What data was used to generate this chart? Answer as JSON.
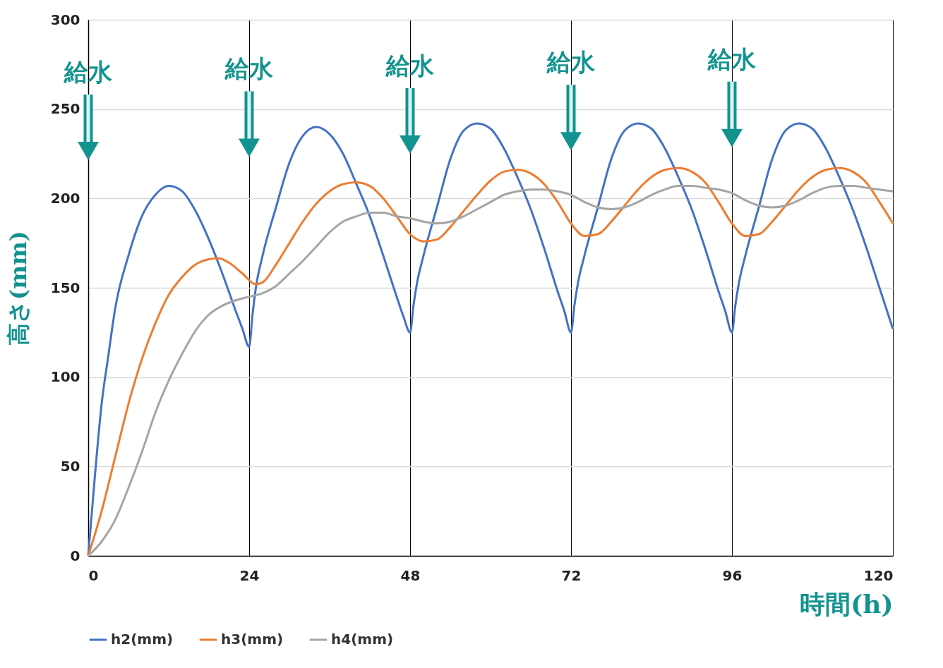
{
  "chart_data": {
    "type": "line",
    "xlabel": "時間(h)",
    "ylabel": "高さ(mm)",
    "xlim": [
      0,
      120
    ],
    "xticks": [
      0,
      24,
      48,
      72,
      96,
      120
    ],
    "ylim": [
      0,
      300
    ],
    "yticks": [
      0,
      50,
      100,
      150,
      200,
      250,
      300
    ],
    "grid": true,
    "legend": "bottom",
    "marker": "none",
    "line_style": "solid",
    "series": [
      {
        "name": "h2(mm)",
        "color": "#4472c4",
        "x": [
          0,
          1,
          2,
          3,
          4,
          6,
          8,
          10,
          12,
          14,
          16,
          18,
          20,
          22,
          23,
          24,
          24.5,
          25,
          26,
          28,
          30,
          32,
          34,
          36,
          38,
          40,
          42,
          44,
          46,
          47,
          48,
          48.5,
          49,
          50,
          52,
          54,
          56,
          58,
          60,
          62,
          64,
          66,
          68,
          70,
          71,
          72,
          72.5,
          73,
          74,
          76,
          78,
          80,
          82,
          84,
          86,
          88,
          90,
          92,
          94,
          95,
          96,
          96.5,
          97,
          98,
          100,
          102,
          104,
          106,
          108,
          110,
          112,
          114,
          116,
          118,
          120
        ],
        "values": [
          0,
          45,
          85,
          112,
          138,
          168,
          190,
          202,
          207,
          204,
          193,
          177,
          158,
          137,
          127,
          117,
          135,
          150,
          168,
          195,
          220,
          235,
          240,
          236,
          225,
          208,
          190,
          168,
          145,
          134,
          125,
          140,
          152,
          168,
          195,
          222,
          238,
          242,
          239,
          228,
          212,
          194,
          172,
          148,
          137,
          125,
          140,
          152,
          168,
          195,
          222,
          238,
          242,
          239,
          228,
          212,
          194,
          172,
          148,
          137,
          125,
          140,
          152,
          168,
          195,
          222,
          238,
          242,
          239,
          228,
          212,
          194,
          173,
          150,
          127
        ]
      },
      {
        "name": "h3(mm)",
        "color": "#ed7d31",
        "x": [
          0,
          2,
          4,
          6,
          8,
          10,
          12,
          14,
          16,
          18,
          19.5,
          21,
          23,
          25,
          26,
          28,
          30,
          32,
          34,
          36,
          38,
          40,
          42,
          44,
          46,
          48,
          50,
          52,
          54,
          56,
          58,
          60,
          62,
          64,
          66,
          68,
          70,
          72,
          74,
          76,
          78,
          80,
          82,
          84,
          86,
          88,
          90,
          92,
          94,
          96,
          98,
          100,
          102,
          104,
          106,
          108,
          110,
          112,
          114,
          116,
          118,
          120
        ],
        "values": [
          0,
          25,
          55,
          85,
          110,
          130,
          146,
          156,
          163,
          166,
          166.5,
          164,
          158,
          152,
          153,
          163,
          175,
          187,
          197,
          204,
          208,
          209,
          207,
          200,
          190,
          180,
          176,
          177,
          184,
          193,
          202,
          210,
          215,
          216,
          214,
          208,
          198,
          186,
          179,
          180,
          187,
          196,
          205,
          212,
          216,
          217,
          215,
          209,
          198,
          186,
          179,
          180,
          187,
          196,
          205,
          212,
          216,
          217,
          215,
          209,
          198,
          186
        ]
      },
      {
        "name": "h4(mm)",
        "color": "#a5a5a5",
        "x": [
          0,
          2,
          4,
          6,
          8,
          10,
          12,
          14,
          16,
          18,
          20,
          22,
          24,
          26,
          28,
          30,
          32,
          34,
          36,
          38,
          40,
          42,
          44,
          46,
          48,
          50,
          52,
          54,
          56,
          58,
          60,
          62,
          64,
          66,
          68,
          70,
          72,
          74,
          76,
          78,
          80,
          82,
          84,
          86,
          88,
          90,
          92,
          94,
          96,
          98,
          100,
          102,
          104,
          106,
          108,
          110,
          112,
          114,
          116,
          118,
          120
        ],
        "values": [
          0,
          8,
          20,
          38,
          58,
          80,
          98,
          113,
          126,
          135,
          140,
          143,
          145,
          147,
          151,
          158,
          165,
          173,
          181,
          187,
          190,
          192,
          192,
          190,
          189,
          187,
          186,
          187,
          190,
          194,
          198,
          202,
          204,
          205,
          205,
          204,
          202,
          198,
          195,
          194,
          195,
          198,
          202,
          205,
          207,
          207,
          206,
          205,
          203,
          199,
          196,
          195,
          196,
          199,
          203,
          206,
          207,
          207,
          206,
          205,
          204
        ]
      }
    ],
    "annotations": [
      "給水",
      "給水",
      "給水",
      "給水",
      "給水"
    ]
  }
}
